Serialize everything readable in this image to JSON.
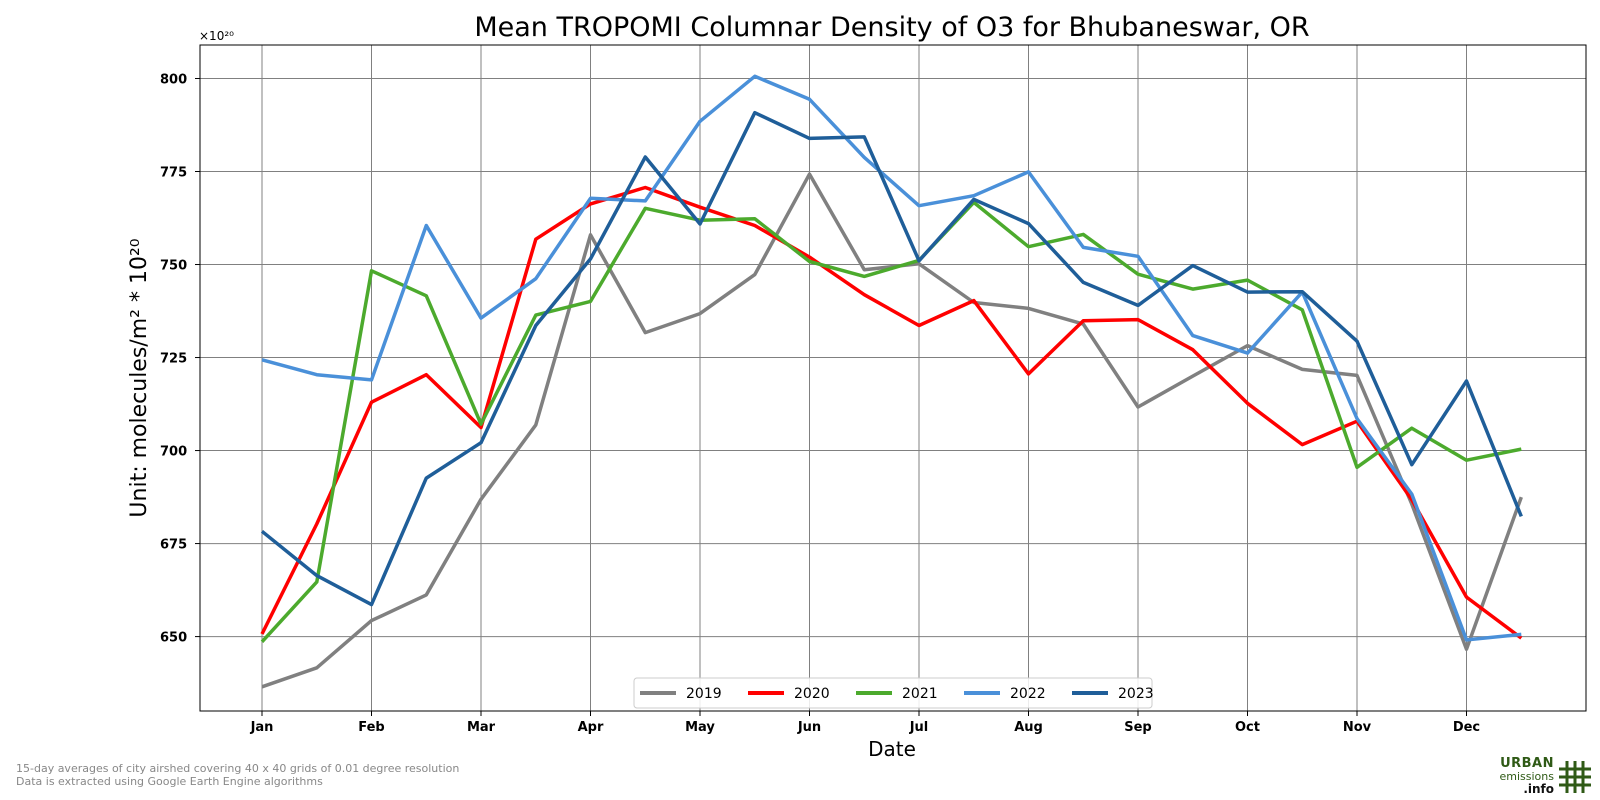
{
  "chart_data": {
    "type": "line",
    "title": "Mean TROPOMI Columnar Density of O3 for Bhubaneswar, OR",
    "xlabel": "Date",
    "ylabel": "Unit: molecules/m² * 10²⁰",
    "multiplier_label": "×10²⁰",
    "x_ticks": [
      "Jan",
      "Feb",
      "Mar",
      "Apr",
      "May",
      "Jun",
      "Jul",
      "Aug",
      "Sep",
      "Oct",
      "Nov",
      "Dec"
    ],
    "y_ticks": [
      650,
      675,
      700,
      725,
      750,
      775,
      800
    ],
    "ylim": [
      630,
      809
    ],
    "grid": true,
    "legend_position": "bottom-center",
    "series": [
      {
        "name": "2019",
        "color": "#808080",
        "values": [
          636.5,
          641.6,
          654.3,
          661.2,
          686.9,
          706.9,
          758.0,
          731.7,
          736.8,
          747.3,
          774.3,
          748.6,
          750.2,
          739.8,
          738.2,
          734.0,
          711.7,
          720.0,
          728.2,
          721.8,
          720.2,
          685.6,
          646.6,
          687.5
        ]
      },
      {
        "name": "2020",
        "color": "#ff0000",
        "values": [
          650.7,
          680.3,
          713.0,
          720.4,
          706.2,
          756.8,
          766.3,
          770.7,
          765.4,
          760.5,
          752.0,
          741.9,
          733.6,
          740.3,
          720.6,
          734.9,
          735.2,
          727.1,
          712.7,
          701.6,
          707.9,
          686.8,
          660.6,
          649.6
        ]
      },
      {
        "name": "2021",
        "color": "#4caa2d",
        "values": [
          648.6,
          664.7,
          748.3,
          741.6,
          707.1,
          736.4,
          740.1,
          765.1,
          761.9,
          762.3,
          750.8,
          746.8,
          751.1,
          766.7,
          754.8,
          758.1,
          747.4,
          743.4,
          745.8,
          737.8,
          695.5,
          706.0,
          697.4,
          700.4
        ]
      },
      {
        "name": "2022",
        "color": "#4a90d9",
        "values": [
          724.4,
          720.4,
          719.0,
          760.5,
          735.6,
          746.2,
          767.8,
          767.1,
          788.5,
          800.6,
          794.4,
          778.8,
          765.8,
          768.5,
          774.9,
          754.6,
          752.2,
          730.9,
          726.2,
          742.6,
          708.6,
          688.3,
          649.1,
          650.6
        ]
      },
      {
        "name": "2023",
        "color": "#1f5e99",
        "values": [
          678.3,
          666.4,
          658.6,
          692.6,
          702.1,
          733.6,
          751.5,
          778.9,
          760.9,
          790.8,
          783.9,
          784.3,
          751.0,
          767.5,
          761.0,
          745.2,
          739.0,
          749.7,
          742.6,
          742.7,
          729.4,
          696.2,
          718.7,
          682.3
        ]
      }
    ]
  },
  "footnote": {
    "line1": "15-day averages of city airshed covering 40 x 40 grids of 0.01 degree resolution",
    "line2": "Data is extracted using Google Earth Engine algorithms"
  },
  "logo": {
    "line1": "URBAN",
    "line2": "emissions",
    "line3": ".info"
  }
}
